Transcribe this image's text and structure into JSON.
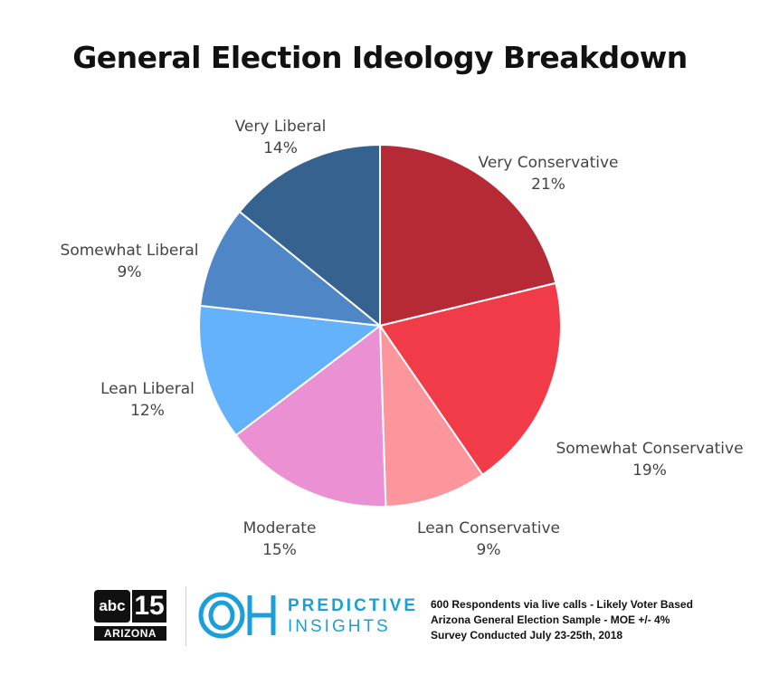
{
  "chart_data": {
    "type": "pie",
    "title": "General Election Ideology Breakdown",
    "slices": [
      {
        "label": "Very Conservative",
        "value": 21,
        "value_label": "21%",
        "color": "#b52a35"
      },
      {
        "label": "Somewhat Conservative",
        "value": 19,
        "value_label": "19%",
        "color": "#f23b48"
      },
      {
        "label": "Lean Conservative",
        "value": 9,
        "value_label": "9%",
        "color": "#fd959d"
      },
      {
        "label": "Moderate",
        "value": 15,
        "value_label": "15%",
        "color": "#eb90d2"
      },
      {
        "label": "Lean Liberal",
        "value": 12,
        "value_label": "12%",
        "color": "#65b2fc"
      },
      {
        "label": "Somewhat Liberal",
        "value": 9,
        "value_label": "9%",
        "color": "#4f86c5"
      },
      {
        "label": "Very Liberal",
        "value": 14,
        "value_label": "14%",
        "color": "#36628f"
      }
    ],
    "start_angle_deg": 0,
    "direction": "clockwise",
    "legend": "none"
  },
  "footer": {
    "abc_logo": {
      "badge": "abc",
      "number": "15",
      "state": "ARIZONA"
    },
    "oh_logo": {
      "monogram": "OH",
      "line1": "PREDICTIVE",
      "line2": "INSIGHTS",
      "color": "#1a9fd8"
    },
    "survey_note": [
      "600 Respondents via live calls - Likely Voter Based",
      "Arizona General Election Sample - MOE +/- 4%",
      "Survey Conducted July 23-25th, 2018"
    ]
  }
}
